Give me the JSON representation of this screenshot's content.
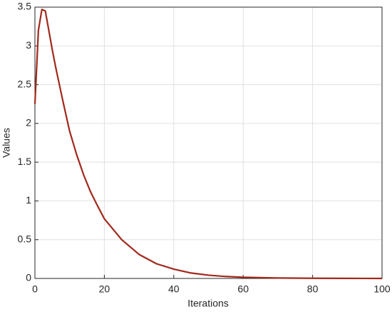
{
  "chart_data": {
    "type": "line",
    "xlabel": "Iterations",
    "ylabel": "Values",
    "x": [
      0,
      1,
      2,
      3,
      4,
      5,
      6,
      8,
      10,
      12,
      14,
      16,
      18,
      20,
      25,
      30,
      35,
      40,
      45,
      50,
      55,
      60,
      70,
      80,
      90,
      100
    ],
    "series": [
      {
        "color": "#a0291c",
        "values": [
          2.25,
          3.2,
          3.47,
          3.45,
          3.2,
          2.95,
          2.72,
          2.3,
          1.9,
          1.6,
          1.34,
          1.12,
          0.94,
          0.77,
          0.5,
          0.31,
          0.19,
          0.12,
          0.07,
          0.042,
          0.025,
          0.015,
          0.006,
          0.002,
          0.001,
          0
        ]
      }
    ],
    "xlim": [
      0,
      100
    ],
    "xticks": [
      0,
      20,
      40,
      60,
      80,
      100
    ],
    "ylim": [
      0,
      3.5
    ],
    "yticks": [
      0,
      0.5,
      1,
      1.5,
      2,
      2.5,
      3,
      3.5
    ],
    "grid": true
  }
}
